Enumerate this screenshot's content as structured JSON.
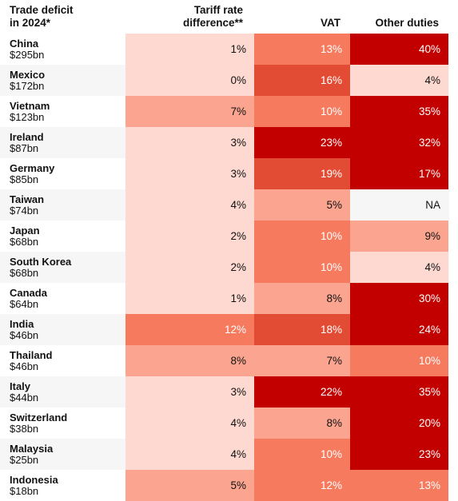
{
  "headers": {
    "country_line1": "Trade deficit",
    "country_line2": "in 2024*",
    "tariff_line1": "Tariff rate",
    "tariff_line2": "difference**",
    "vat": "VAT",
    "other": "Other duties"
  },
  "colors": {
    "scale": [
      "#fdd9d1",
      "#fba48f",
      "#f67a5e",
      "#e34c34",
      "#c30000"
    ],
    "na": "#f6f6f6",
    "text_dark": "#121212",
    "text_light": "#ffffff"
  },
  "chart_data": {
    "type": "table",
    "columns": [
      "Trade deficit in 2024*",
      "Tariff rate difference**",
      "VAT",
      "Other duties"
    ],
    "rows": [
      {
        "country": "China",
        "deficit": "$295bn",
        "tariff": "1%",
        "vat": "13%",
        "other": "40%"
      },
      {
        "country": "Mexico",
        "deficit": "$172bn",
        "tariff": "0%",
        "vat": "16%",
        "other": "4%"
      },
      {
        "country": "Vietnam",
        "deficit": "$123bn",
        "tariff": "7%",
        "vat": "10%",
        "other": "35%"
      },
      {
        "country": "Ireland",
        "deficit": "$87bn",
        "tariff": "3%",
        "vat": "23%",
        "other": "32%"
      },
      {
        "country": "Germany",
        "deficit": "$85bn",
        "tariff": "3%",
        "vat": "19%",
        "other": "17%"
      },
      {
        "country": "Taiwan",
        "deficit": "$74bn",
        "tariff": "4%",
        "vat": "5%",
        "other": "NA"
      },
      {
        "country": "Japan",
        "deficit": "$68bn",
        "tariff": "2%",
        "vat": "10%",
        "other": "9%"
      },
      {
        "country": "South Korea",
        "deficit": "$68bn",
        "tariff": "2%",
        "vat": "10%",
        "other": "4%"
      },
      {
        "country": "Canada",
        "deficit": "$64bn",
        "tariff": "1%",
        "vat": "8%",
        "other": "30%"
      },
      {
        "country": "India",
        "deficit": "$46bn",
        "tariff": "12%",
        "vat": "18%",
        "other": "24%"
      },
      {
        "country": "Thailand",
        "deficit": "$46bn",
        "tariff": "8%",
        "vat": "7%",
        "other": "10%"
      },
      {
        "country": "Italy",
        "deficit": "$44bn",
        "tariff": "3%",
        "vat": "22%",
        "other": "35%"
      },
      {
        "country": "Switzerland",
        "deficit": "$38bn",
        "tariff": "4%",
        "vat": "8%",
        "other": "20%"
      },
      {
        "country": "Malaysia",
        "deficit": "$25bn",
        "tariff": "4%",
        "vat": "10%",
        "other": "23%"
      },
      {
        "country": "Indonesia",
        "deficit": "$18bn",
        "tariff": "5%",
        "vat": "12%",
        "other": "13%"
      }
    ]
  }
}
